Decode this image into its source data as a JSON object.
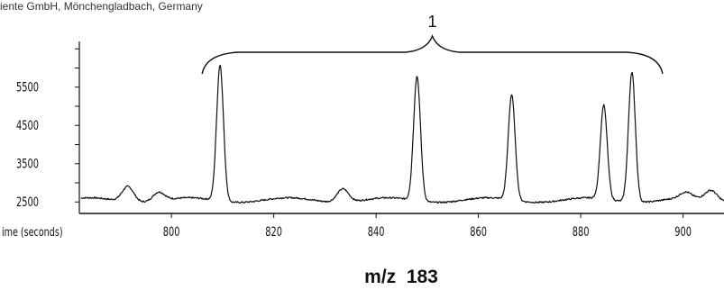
{
  "header_text": "iente GmbH, Mönchengladbach, Germany",
  "chart_data": {
    "type": "line",
    "title": "",
    "xlabel": "ime (seconds)",
    "ylabel": "",
    "caption": "m/z  183",
    "bracket_label": "1",
    "xlim": [
      782,
      908
    ],
    "ylim": [
      2200,
      6600
    ],
    "x_ticks": [
      800,
      820,
      840,
      860,
      880,
      900
    ],
    "y_ticks": [
      2500,
      3500,
      4500,
      5500
    ],
    "x_tick_labels": [
      "800",
      "820",
      "840",
      "860",
      "880",
      "900"
    ],
    "y_tick_labels": [
      "2500",
      "3500",
      "4500",
      "5500"
    ],
    "grid": false,
    "series": [
      {
        "color": "#111111",
        "baseline": 2550,
        "peaks": [
          {
            "x": 809.5,
            "y": 6100
          },
          {
            "x": 848.0,
            "y": 5800
          },
          {
            "x": 866.5,
            "y": 5300
          },
          {
            "x": 884.5,
            "y": 5000
          },
          {
            "x": 890.0,
            "y": 5950
          }
        ],
        "minor_features": [
          {
            "x": 791.5,
            "y": 2950
          },
          {
            "x": 797.5,
            "y": 2780
          },
          {
            "x": 833.5,
            "y": 2900
          },
          {
            "x": 900.5,
            "y": 2700
          },
          {
            "x": 905.5,
            "y": 2800
          }
        ]
      }
    ]
  }
}
